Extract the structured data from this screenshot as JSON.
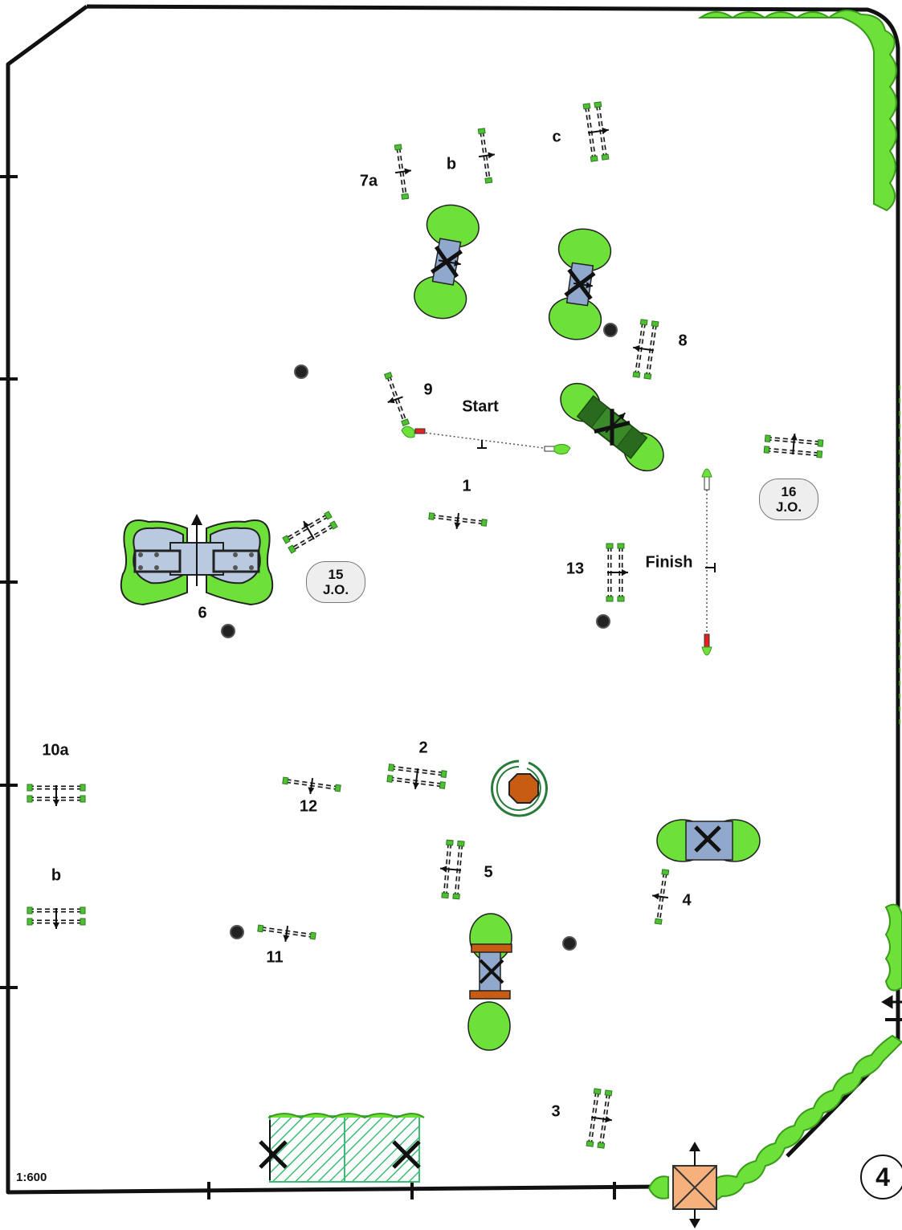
{
  "diagram": {
    "scale": "1:600",
    "page_number": "4",
    "start_label": "Start",
    "finish_label": "Finish",
    "obstacle_labels": {
      "n1": "1",
      "n2": "2",
      "n3": "3",
      "n4": "4",
      "n5": "5",
      "n6": "6",
      "n7a": "7a",
      "n7b": "b",
      "n7c": "c",
      "n8": "8",
      "n9": "9",
      "n10a": "10a",
      "n10b": "b",
      "n11": "11",
      "n12": "12",
      "n13": "13"
    },
    "jump_off": [
      {
        "number": "15",
        "text": "J.O."
      },
      {
        "number": "16",
        "text": "J.O."
      }
    ],
    "colors": {
      "hedge": "#66dd33",
      "water": "#8fa8cc",
      "gate": "#f6b07c",
      "oxer_center": "#c75c12",
      "border": "#111111"
    }
  }
}
